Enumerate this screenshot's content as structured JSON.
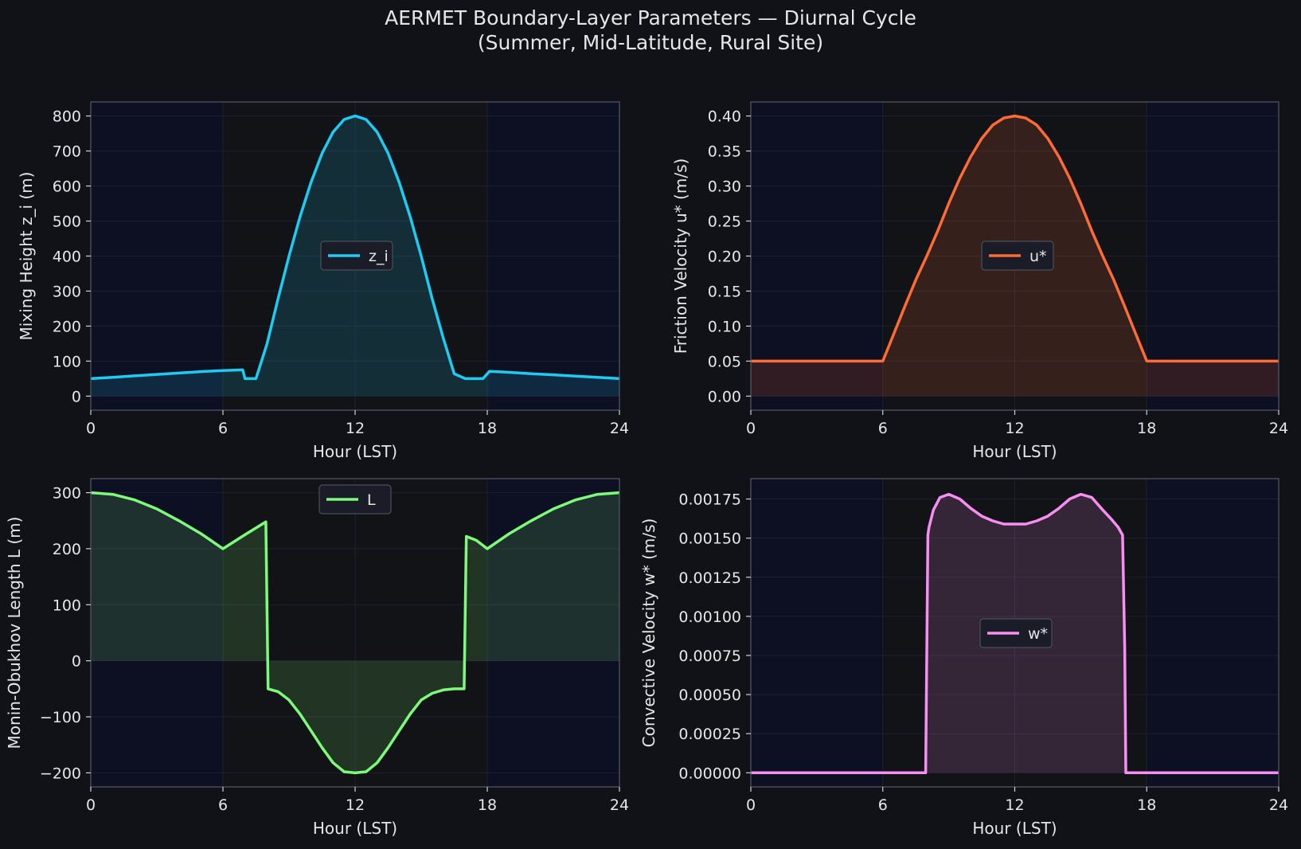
{
  "figure": {
    "title_line1": "AERMET Boundary-Layer Parameters — Diurnal Cycle",
    "title_line2": "(Summer, Mid-Latitude, Rural Site)"
  },
  "colors": {
    "background": "#111217",
    "night_shading": "#0d0f22",
    "text": "#e6e6e6",
    "spine": "#555a66",
    "z_i": "#1ecbf2",
    "u_star": "#ff6b35",
    "L": "#7dfa7a",
    "w_star": "#f78ef2"
  },
  "chart_data": [
    {
      "id": "mixing-height",
      "type": "line",
      "xlabel": "Hour (LST)",
      "ylabel": "Mixing Height z_i (m)",
      "xlim": [
        0,
        24
      ],
      "ylim": [
        -40,
        840
      ],
      "xticks": [
        0,
        6,
        12,
        18,
        24
      ],
      "yticks": [
        0,
        100,
        200,
        300,
        400,
        500,
        600,
        700,
        800
      ],
      "ytick_labels": [
        "0",
        "100",
        "200",
        "300",
        "400",
        "500",
        "600",
        "700",
        "800"
      ],
      "legend": "center",
      "night_shading": [
        [
          0,
          6
        ],
        [
          18,
          24
        ]
      ],
      "series": [
        {
          "name": "z_i",
          "color": "#1ecbf2",
          "x": [
            0,
            1,
            2,
            3,
            4,
            5,
            6,
            6.9,
            7.0,
            7.5,
            8,
            8.5,
            9,
            9.5,
            10,
            10.5,
            11,
            11.5,
            12,
            12.5,
            13,
            13.5,
            14,
            14.5,
            15,
            15.5,
            16,
            16.5,
            17,
            17.5,
            17.8,
            18.0,
            18.1,
            19,
            20,
            21,
            22,
            23,
            24
          ],
          "values": [
            50,
            54,
            58,
            62,
            66,
            70,
            73,
            75,
            50,
            50,
            149,
            278,
            400,
            512,
            611,
            693,
            754,
            790,
            800,
            790,
            754,
            693,
            611,
            512,
            400,
            278,
            166,
            64,
            50,
            50,
            50,
            64,
            71,
            68,
            64,
            61,
            57,
            54,
            50
          ]
        }
      ]
    },
    {
      "id": "friction-velocity",
      "type": "line",
      "xlabel": "Hour (LST)",
      "ylabel": "Friction Velocity u* (m/s)",
      "xlim": [
        0,
        24
      ],
      "ylim": [
        -0.02,
        0.42
      ],
      "xticks": [
        0,
        6,
        12,
        18,
        24
      ],
      "yticks": [
        0,
        0.05,
        0.1,
        0.15,
        0.2,
        0.25,
        0.3,
        0.35,
        0.4
      ],
      "ytick_labels": [
        "0.00",
        "0.05",
        "0.10",
        "0.15",
        "0.20",
        "0.25",
        "0.30",
        "0.35",
        "0.40"
      ],
      "legend": "center",
      "night_shading": [
        [
          0,
          6
        ],
        [
          18,
          24
        ]
      ],
      "series": [
        {
          "name": "u*",
          "color": "#ff6b35",
          "x": [
            0,
            6,
            6.5,
            7,
            7.5,
            8,
            8.5,
            9,
            9.5,
            10,
            10.5,
            11,
            11.5,
            12,
            12.5,
            13,
            13.5,
            14,
            14.5,
            15,
            15.5,
            16,
            16.5,
            17,
            17.5,
            18,
            24
          ],
          "values": [
            0.05,
            0.05,
            0.089,
            0.128,
            0.166,
            0.2,
            0.236,
            0.275,
            0.311,
            0.342,
            0.368,
            0.387,
            0.397,
            0.4,
            0.397,
            0.387,
            0.368,
            0.342,
            0.311,
            0.275,
            0.236,
            0.2,
            0.166,
            0.128,
            0.089,
            0.05,
            0.05
          ]
        }
      ]
    },
    {
      "id": "monin-obukhov",
      "type": "line",
      "xlabel": "Hour (LST)",
      "ylabel": "Monin-Obukhov Length L (m)",
      "xlim": [
        0,
        24
      ],
      "ylim": [
        -225,
        325
      ],
      "xticks": [
        0,
        6,
        12,
        18,
        24
      ],
      "yticks": [
        -200,
        -100,
        0,
        100,
        200,
        300
      ],
      "ytick_labels": [
        "−200",
        "−100",
        "0",
        "100",
        "200",
        "300"
      ],
      "legend": "upper center",
      "night_shading": [
        [
          0,
          6
        ],
        [
          18,
          24
        ]
      ],
      "series": [
        {
          "name": "L",
          "color": "#7dfa7a",
          "x": [
            0,
            1,
            2,
            3,
            4,
            5,
            6,
            7,
            7.95,
            8.05,
            8.5,
            9,
            9.5,
            10,
            10.5,
            11,
            11.5,
            12,
            12.5,
            13,
            13.5,
            14,
            14.5,
            15,
            15.5,
            16,
            16.5,
            16.95,
            17.05,
            17.5,
            18,
            19,
            20,
            21,
            22,
            23,
            24
          ],
          "values": [
            300,
            297,
            287,
            271,
            250,
            227,
            200,
            225,
            248,
            -50,
            -55,
            -70,
            -95,
            -125,
            -155,
            -182,
            -198,
            -200,
            -198,
            -182,
            -155,
            -125,
            -95,
            -70,
            -58,
            -52,
            -50,
            -50,
            222,
            215,
            200,
            227,
            250,
            271,
            287,
            297,
            300
          ]
        }
      ]
    },
    {
      "id": "convective-velocity",
      "type": "line",
      "xlabel": "Hour (LST)",
      "ylabel": "Convective Velocity w* (m/s)",
      "xlim": [
        0,
        24
      ],
      "ylim": [
        -9e-05,
        0.00188
      ],
      "xticks": [
        0,
        6,
        12,
        18,
        24
      ],
      "yticks": [
        0,
        0.00025,
        0.0005,
        0.00075,
        0.001,
        0.00125,
        0.0015,
        0.00175
      ],
      "ytick_labels": [
        "0.00000",
        "0.00025",
        "0.00050",
        "0.00075",
        "0.00100",
        "0.00125",
        "0.00150",
        "0.00175"
      ],
      "legend": "center",
      "night_shading": [
        [
          0,
          6
        ],
        [
          18,
          24
        ]
      ],
      "series": [
        {
          "name": "w*",
          "color": "#f78ef2",
          "x": [
            0,
            7.95,
            8.05,
            8.1,
            8.3,
            8.6,
            9,
            9.5,
            10,
            10.5,
            11,
            11.5,
            12,
            12.5,
            13,
            13.5,
            14,
            14.5,
            15,
            15.5,
            16,
            16.4,
            16.7,
            16.9,
            17.0,
            17.05,
            17.1,
            24
          ],
          "values": [
            0,
            0,
            0.00152,
            0.00157,
            0.00168,
            0.00176,
            0.00178,
            0.00175,
            0.00169,
            0.00164,
            0.00161,
            0.00159,
            0.00159,
            0.00159,
            0.00161,
            0.00164,
            0.00169,
            0.00175,
            0.00178,
            0.00176,
            0.00168,
            0.00162,
            0.00157,
            0.00152,
            0.0008,
            0,
            0,
            0
          ]
        }
      ]
    }
  ]
}
